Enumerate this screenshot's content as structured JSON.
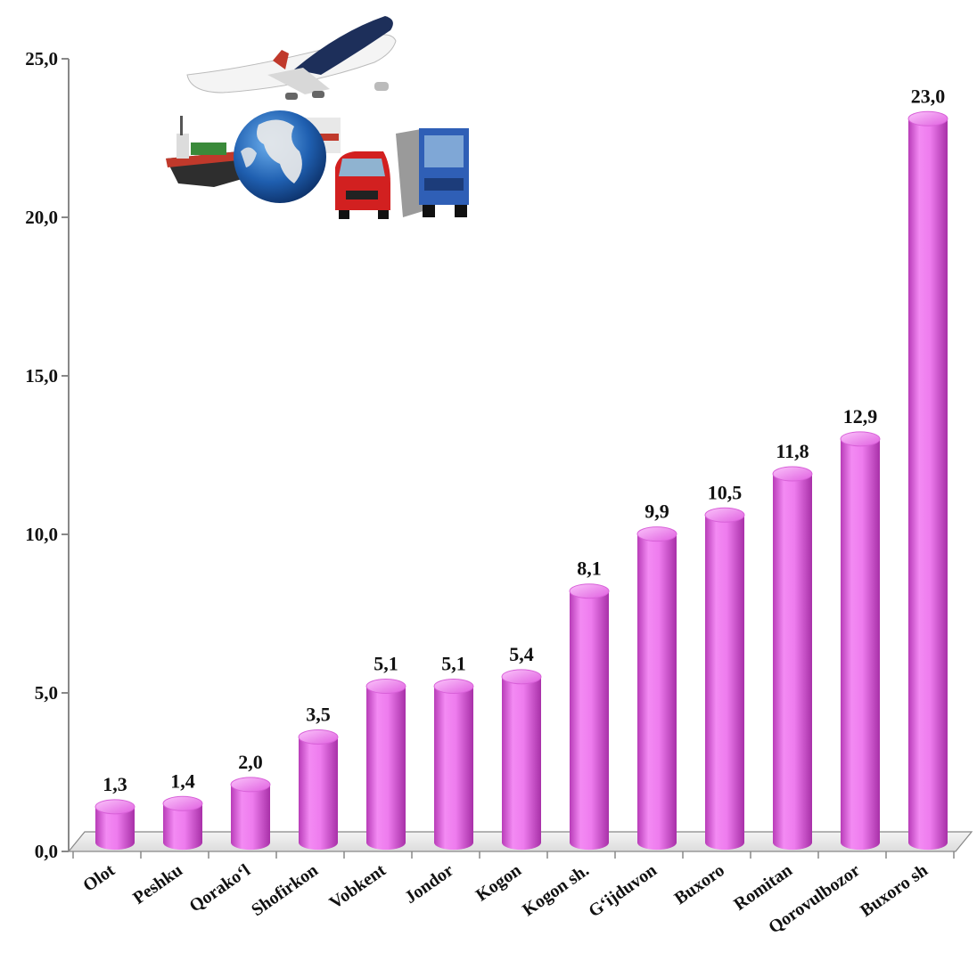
{
  "chart_data": {
    "type": "bar",
    "style": "3d-cylinder",
    "categories": [
      "Olot",
      "Peshku",
      "Qorako‘l",
      "Shofirkon",
      "Vobkent",
      "Jondor",
      "Kogon",
      "Kogon sh.",
      "G‘ijduvon",
      "Buxoro",
      "Romitan",
      "Qorovulbozor",
      "Buxoro sh"
    ],
    "values": [
      1.3,
      1.4,
      2.0,
      3.5,
      5.1,
      5.1,
      5.4,
      8.1,
      9.9,
      10.5,
      11.8,
      12.9,
      23.0
    ],
    "data_labels": [
      "1,3",
      "1,4",
      "2,0",
      "3,5",
      "5,1",
      "5,1",
      "5,4",
      "8,1",
      "9,9",
      "10,5",
      "11,8",
      "12,9",
      "23,0"
    ],
    "y_ticks": [
      0,
      5,
      10,
      15,
      20,
      25
    ],
    "y_tick_labels": [
      "0,0",
      "5,0",
      "10,0",
      "15,0",
      "20,0",
      "25,0"
    ],
    "ylim": [
      0,
      25
    ],
    "title": "",
    "xlabel": "",
    "ylabel": "",
    "grid": false,
    "legend": "none",
    "bar_color": "#ee7cee",
    "bar_top_color": "#f59cf5",
    "bar_dark_color": "#c44cc4",
    "floor_color": "#ececec",
    "axis_color": "#888888",
    "decoration": "transport-illustration"
  }
}
